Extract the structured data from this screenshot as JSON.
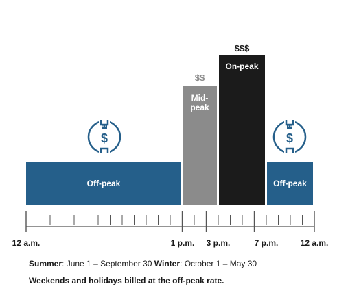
{
  "rates": {
    "off_peak_label": "Off-peak",
    "mid_peak_label": "Mid-\npeak",
    "on_peak_label": "On-peak",
    "mid_peak_price": "$$",
    "on_peak_price": "$$$"
  },
  "icons": {
    "left": "plug-dollar-icon",
    "right": "plug-dollar-icon",
    "dollar": "$"
  },
  "axis": {
    "labels": [
      "12 a.m.",
      "1 p.m.",
      "3 p.m.",
      "7 p.m.",
      "12 a.m."
    ]
  },
  "notes": {
    "summer_title": "Summer",
    "summer_text": ": June 1 – September 30 ",
    "winter_title": "Winter",
    "winter_text": ": October 1 – May 30",
    "weekend_note": "Weekends and holidays billed at the off-peak rate."
  },
  "colors": {
    "off_peak": "#255f8a",
    "mid_peak": "#8b8b8b",
    "on_peak": "#1b1b1b"
  }
}
